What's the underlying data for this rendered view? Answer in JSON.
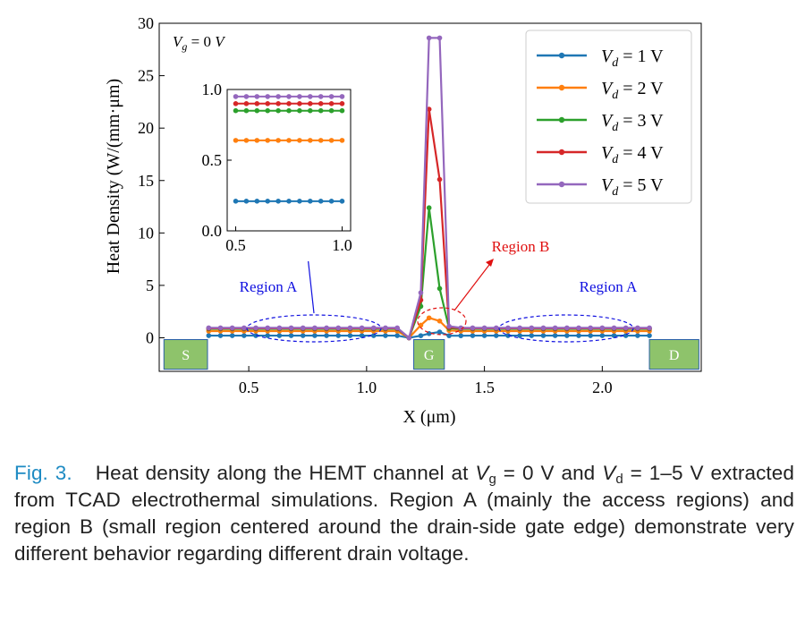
{
  "chart_data": {
    "type": "line",
    "xlabel": "X (μm)",
    "ylabel": "Heat Density (W/(mm·μm)",
    "xlim": [
      0.12,
      2.42
    ],
    "ylim": [
      -3.2,
      30
    ],
    "x_ticks": [
      0.5,
      1.0,
      1.5,
      2.0
    ],
    "x_tick_labels": [
      "0.5",
      "1.0",
      "1.5",
      "2.0"
    ],
    "y_ticks": [
      0,
      5,
      10,
      15,
      20,
      25,
      30
    ],
    "y_tick_labels": [
      "0",
      "5",
      "10",
      "15",
      "20",
      "25",
      "30"
    ],
    "condition_label": "V_g = 0 V",
    "x": [
      0.33,
      0.38,
      0.43,
      0.48,
      0.53,
      0.58,
      0.63,
      0.68,
      0.73,
      0.78,
      0.83,
      0.88,
      0.93,
      0.98,
      1.03,
      1.08,
      1.13,
      1.18,
      1.23,
      1.265,
      1.31,
      1.35,
      1.4,
      1.45,
      1.5,
      1.55,
      1.6,
      1.65,
      1.7,
      1.75,
      1.8,
      1.85,
      1.9,
      1.95,
      2.0,
      2.05,
      2.1,
      2.15,
      2.2
    ],
    "series": [
      {
        "name": "V_d = 1 V",
        "label_main": "V",
        "label_sub": "d",
        "label_rest": " = 1 V",
        "color": "#1f77b4",
        "values": [
          0.21,
          0.21,
          0.21,
          0.21,
          0.21,
          0.21,
          0.21,
          0.21,
          0.21,
          0.21,
          0.21,
          0.21,
          0.21,
          0.21,
          0.21,
          0.21,
          0.21,
          0.0,
          0.2,
          0.4,
          0.55,
          0.2,
          0.2,
          0.21,
          0.21,
          0.21,
          0.21,
          0.21,
          0.21,
          0.21,
          0.21,
          0.21,
          0.21,
          0.21,
          0.21,
          0.21,
          0.21,
          0.21,
          0.21
        ]
      },
      {
        "name": "V_d = 2 V",
        "label_main": "V",
        "label_sub": "d",
        "label_rest": " = 2 V",
        "color": "#ff7f0e",
        "values": [
          0.64,
          0.64,
          0.64,
          0.64,
          0.64,
          0.64,
          0.64,
          0.64,
          0.64,
          0.64,
          0.64,
          0.64,
          0.64,
          0.64,
          0.64,
          0.64,
          0.64,
          0.0,
          1.2,
          1.9,
          1.6,
          0.7,
          0.64,
          0.64,
          0.64,
          0.64,
          0.64,
          0.64,
          0.64,
          0.64,
          0.64,
          0.64,
          0.64,
          0.64,
          0.64,
          0.64,
          0.64,
          0.64,
          0.64
        ]
      },
      {
        "name": "V_d = 3 V",
        "label_main": "V",
        "label_sub": "d",
        "label_rest": " = 3 V",
        "color": "#2ca02c",
        "values": [
          0.85,
          0.85,
          0.85,
          0.85,
          0.85,
          0.85,
          0.85,
          0.85,
          0.85,
          0.85,
          0.85,
          0.85,
          0.85,
          0.85,
          0.85,
          0.85,
          0.85,
          0.0,
          3.0,
          12.4,
          4.7,
          0.9,
          0.85,
          0.85,
          0.85,
          0.85,
          0.85,
          0.85,
          0.85,
          0.85,
          0.85,
          0.85,
          0.85,
          0.85,
          0.85,
          0.85,
          0.85,
          0.85,
          0.85
        ]
      },
      {
        "name": "V_d = 4 V",
        "label_main": "V",
        "label_sub": "d",
        "label_rest": " = 4 V",
        "color": "#d62728",
        "values": [
          0.9,
          0.9,
          0.9,
          0.9,
          0.9,
          0.9,
          0.9,
          0.9,
          0.9,
          0.9,
          0.9,
          0.9,
          0.9,
          0.9,
          0.9,
          0.9,
          0.9,
          0.0,
          3.6,
          21.8,
          15.1,
          1.0,
          0.9,
          0.9,
          0.9,
          0.9,
          0.9,
          0.9,
          0.9,
          0.9,
          0.9,
          0.9,
          0.9,
          0.9,
          0.9,
          0.9,
          0.9,
          0.9,
          0.9
        ]
      },
      {
        "name": "V_d = 5 V",
        "label_main": "V",
        "label_sub": "d",
        "label_rest": " = 5 V",
        "color": "#9467bd",
        "values": [
          0.95,
          0.95,
          0.95,
          0.95,
          0.95,
          0.95,
          0.95,
          0.95,
          0.95,
          0.95,
          0.95,
          0.95,
          0.95,
          0.95,
          0.95,
          0.95,
          0.95,
          0.0,
          4.3,
          28.6,
          28.6,
          1.1,
          0.95,
          0.95,
          0.95,
          0.95,
          0.95,
          0.95,
          0.95,
          0.95,
          0.95,
          0.95,
          0.95,
          0.95,
          0.95,
          0.95,
          0.95,
          0.95,
          0.95
        ]
      }
    ],
    "inset": {
      "xlim": [
        0.46,
        1.04
      ],
      "ylim": [
        0,
        1.0
      ],
      "x_ticks": [
        0.5,
        1.0
      ],
      "x_tick_labels": [
        "0.5",
        "1.0"
      ],
      "y_ticks": [
        0,
        0.5,
        1.0
      ],
      "y_tick_labels": [
        "0.0",
        "0.5",
        "1.0"
      ],
      "x": [
        0.5,
        0.55,
        0.6,
        0.65,
        0.7,
        0.75,
        0.8,
        0.85,
        0.9,
        0.95,
        1.0
      ],
      "levels": [
        0.21,
        0.64,
        0.85,
        0.9,
        0.95
      ]
    },
    "legend_position": "upper right",
    "electrodes": [
      "S",
      "G",
      "D"
    ],
    "regions": {
      "region_a_label": "Region A",
      "region_b_label": "Region B"
    }
  },
  "caption": {
    "fig_label": "Fig. 3.",
    "text_1": "Heat density along the HEMT channel at ",
    "vg_main": "V",
    "vg_sub": "g",
    "text_2": " = 0 V and ",
    "vd_main": "V",
    "vd_sub": "d",
    "text_3": " = 1–5 V extracted from TCAD electrothermal simulations. Region A (mainly the access regions) and region B (small region centered around the drain-side gate edge) demonstrate very different behavior regarding different drain voltage."
  },
  "colors": {
    "electrode_fill": "#8ec36b",
    "electrode_border": "#2a5fa8",
    "region_a": "#1010e0",
    "region_b": "#e01010",
    "caption_label": "#1e8bc3"
  }
}
